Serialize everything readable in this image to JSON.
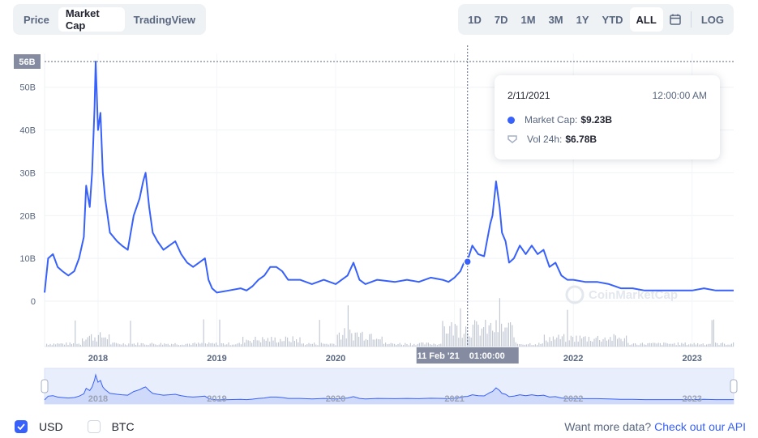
{
  "tabs": [
    {
      "label": "Price",
      "active": false
    },
    {
      "label": "Market Cap",
      "active": true
    },
    {
      "label": "TradingView",
      "active": false
    }
  ],
  "ranges": [
    {
      "label": "1D",
      "active": false
    },
    {
      "label": "7D",
      "active": false
    },
    {
      "label": "1M",
      "active": false
    },
    {
      "label": "3M",
      "active": false
    },
    {
      "label": "1Y",
      "active": false
    },
    {
      "label": "YTD",
      "active": false
    },
    {
      "label": "ALL",
      "active": true
    }
  ],
  "log_label": "LOG",
  "calendar_icon": "calendar-icon",
  "tooltip": {
    "date": "2/11/2021",
    "time": "12:00:00 AM",
    "market_cap_label": "Market Cap:",
    "market_cap_value": "$9.23B",
    "vol_label": "Vol 24h:",
    "vol_value": "$6.78B"
  },
  "crosshair": {
    "y_value_label": "56B",
    "x_date_label": "11 Feb '21",
    "x_time_label": "01:00:00"
  },
  "watermark": "CoinMarketCap",
  "footer": {
    "usd_label": "USD",
    "usd_checked": true,
    "btc_label": "BTC",
    "btc_checked": false,
    "more_text": "Want more data?",
    "api_link": "Check out our API"
  },
  "colors": {
    "line": "#3861fb",
    "volume": "#c3c9d4",
    "accent": "#3861fb",
    "label_bg": "#858ca2"
  },
  "chart_data": {
    "type": "line",
    "yticks": [
      "0",
      "10B",
      "20B",
      "30B",
      "40B",
      "50B"
    ],
    "ytick_values": [
      0,
      10,
      20,
      30,
      40,
      50
    ],
    "ylim": [
      0,
      56
    ],
    "xticks": [
      "2018",
      "2019",
      "2020",
      "2021",
      "2022",
      "2023"
    ],
    "xtick_values": [
      2018,
      2019,
      2020,
      2021,
      2022,
      2023
    ],
    "xlim": [
      2017.55,
      2023.35
    ],
    "grid": true,
    "series": [
      {
        "x": [
          2017.55,
          2017.58,
          2017.62,
          2017.66,
          2017.7,
          2017.75,
          2017.8,
          2017.84,
          2017.88,
          2017.9,
          2017.93,
          2017.95,
          2017.97,
          2017.98,
          2018.0,
          2018.02,
          2018.04,
          2018.06,
          2018.08,
          2018.1,
          2018.13,
          2018.16,
          2018.2,
          2018.25,
          2018.3,
          2018.35,
          2018.38,
          2018.4,
          2018.43,
          2018.46,
          2018.5,
          2018.55,
          2018.6,
          2018.65,
          2018.7,
          2018.75,
          2018.8,
          2018.85,
          2018.9,
          2018.93,
          2018.96,
          2019.0,
          2019.1,
          2019.2,
          2019.25,
          2019.3,
          2019.35,
          2019.4,
          2019.45,
          2019.5,
          2019.55,
          2019.6,
          2019.7,
          2019.8,
          2019.9,
          2020.0,
          2020.1,
          2020.15,
          2020.2,
          2020.25,
          2020.35,
          2020.5,
          2020.6,
          2020.7,
          2020.8,
          2020.9,
          2020.95,
          2021.0,
          2021.05,
          2021.08,
          2021.11,
          2021.15,
          2021.2,
          2021.25,
          2021.3,
          2021.32,
          2021.35,
          2021.38,
          2021.4,
          2021.43,
          2021.46,
          2021.5,
          2021.55,
          2021.6,
          2021.65,
          2021.7,
          2021.75,
          2021.8,
          2021.85,
          2021.9,
          2021.95,
          2022.0,
          2022.1,
          2022.2,
          2022.3,
          2022.4,
          2022.45,
          2022.5,
          2022.6,
          2022.7,
          2022.8,
          2022.9,
          2023.0,
          2023.1,
          2023.2,
          2023.3,
          2023.35
        ],
        "y": [
          2,
          10,
          11,
          8,
          7,
          6,
          7,
          10,
          15,
          27,
          22,
          30,
          45,
          56,
          40,
          44,
          30,
          24,
          20,
          16,
          15,
          14,
          13,
          12,
          20,
          24,
          28,
          30,
          22,
          16,
          14,
          12,
          13,
          14,
          11,
          9,
          8,
          9,
          10,
          5,
          3,
          2,
          2.5,
          3,
          2.5,
          3.5,
          5,
          6,
          8,
          8,
          7,
          5,
          5,
          4,
          5,
          4,
          6,
          9,
          5,
          4,
          5,
          4.5,
          5,
          4.5,
          5.5,
          5,
          4.5,
          5.5,
          7,
          9,
          9.5,
          13,
          11,
          10.5,
          18,
          20,
          28,
          22,
          16,
          14,
          9,
          10,
          13,
          11,
          13,
          11,
          12,
          8,
          9,
          6,
          5,
          5,
          4.5,
          4.5,
          4,
          3,
          3,
          3,
          2.5,
          2.5,
          2.5,
          2.5,
          2.5,
          3,
          2.5,
          2.5,
          2.5
        ]
      }
    ],
    "highlight_point": {
      "x": 2021.11,
      "y": 9.23
    }
  }
}
